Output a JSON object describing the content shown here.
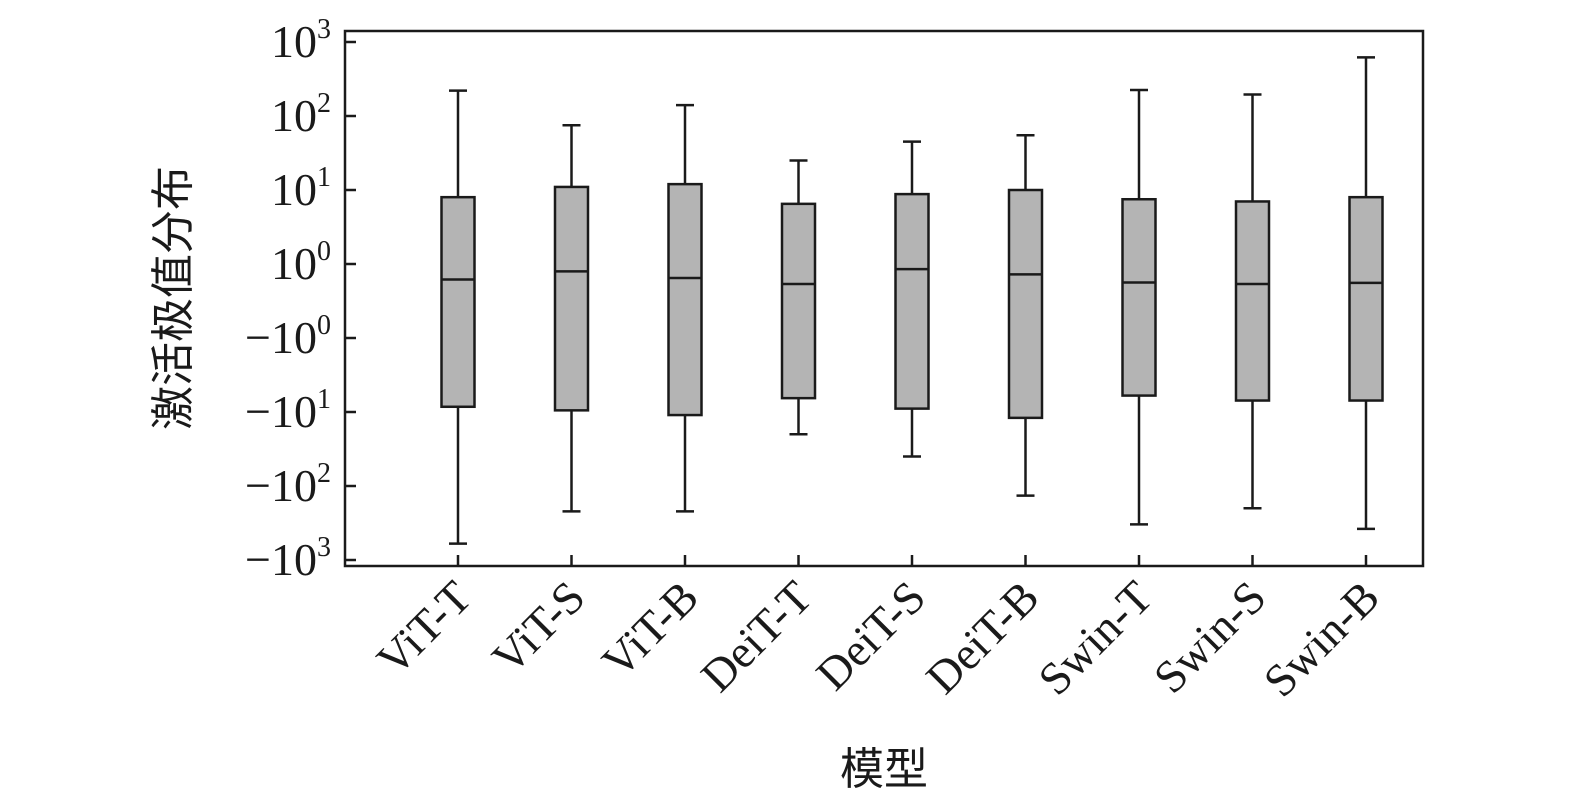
{
  "chart_data": {
    "type": "box",
    "xlabel": "模型",
    "ylabel": "激活极值分布",
    "yscale": "symlog",
    "ylim": [
      -1000,
      1000
    ],
    "yticks": [
      {
        "value": 1000,
        "base": "10",
        "exp": "3"
      },
      {
        "value": 100,
        "base": "10",
        "exp": "2"
      },
      {
        "value": 10,
        "base": "10",
        "exp": "1"
      },
      {
        "value": 1,
        "base": "10",
        "exp": "0"
      },
      {
        "value": -1,
        "base": "−10",
        "exp": "0"
      },
      {
        "value": -10,
        "base": "−10",
        "exp": "1"
      },
      {
        "value": -100,
        "base": "−10",
        "exp": "2"
      },
      {
        "value": -1000,
        "base": "−10",
        "exp": "3"
      }
    ],
    "categories": [
      "ViT-T",
      "ViT-S",
      "ViT-B",
      "DeiT-T",
      "DeiT-S",
      "DeiT-B",
      "Swin-T",
      "Swin-S",
      "Swin-B"
    ],
    "boxes": [
      {
        "whisker_high": 220,
        "q3": 8,
        "median": 0.58,
        "q1": -8.5,
        "whisker_low": -600
      },
      {
        "whisker_high": 75,
        "q3": 11,
        "median": 0.8,
        "q1": -9.5,
        "whisker_low": -220
      },
      {
        "whisker_high": 140,
        "q3": 12,
        "median": 0.62,
        "q1": -11,
        "whisker_low": -220
      },
      {
        "whisker_high": 25,
        "q3": 6.5,
        "median": 0.46,
        "q1": -6.5,
        "whisker_low": -20
      },
      {
        "whisker_high": 45,
        "q3": 8.8,
        "median": 0.86,
        "q1": -9,
        "whisker_low": -40
      },
      {
        "whisker_high": 55,
        "q3": 10,
        "median": 0.72,
        "q1": -12,
        "whisker_low": -135
      },
      {
        "whisker_high": 225,
        "q3": 7.5,
        "median": 0.5,
        "q1": -6,
        "whisker_low": -330
      },
      {
        "whisker_high": 195,
        "q3": 7,
        "median": 0.46,
        "q1": -7,
        "whisker_low": -200
      },
      {
        "whisker_high": 620,
        "q3": 8,
        "median": 0.49,
        "q1": -7,
        "whisker_low": -380
      }
    ],
    "grid": false,
    "box_color": "#b4b4b4",
    "line_color": "#1a1a1a"
  }
}
